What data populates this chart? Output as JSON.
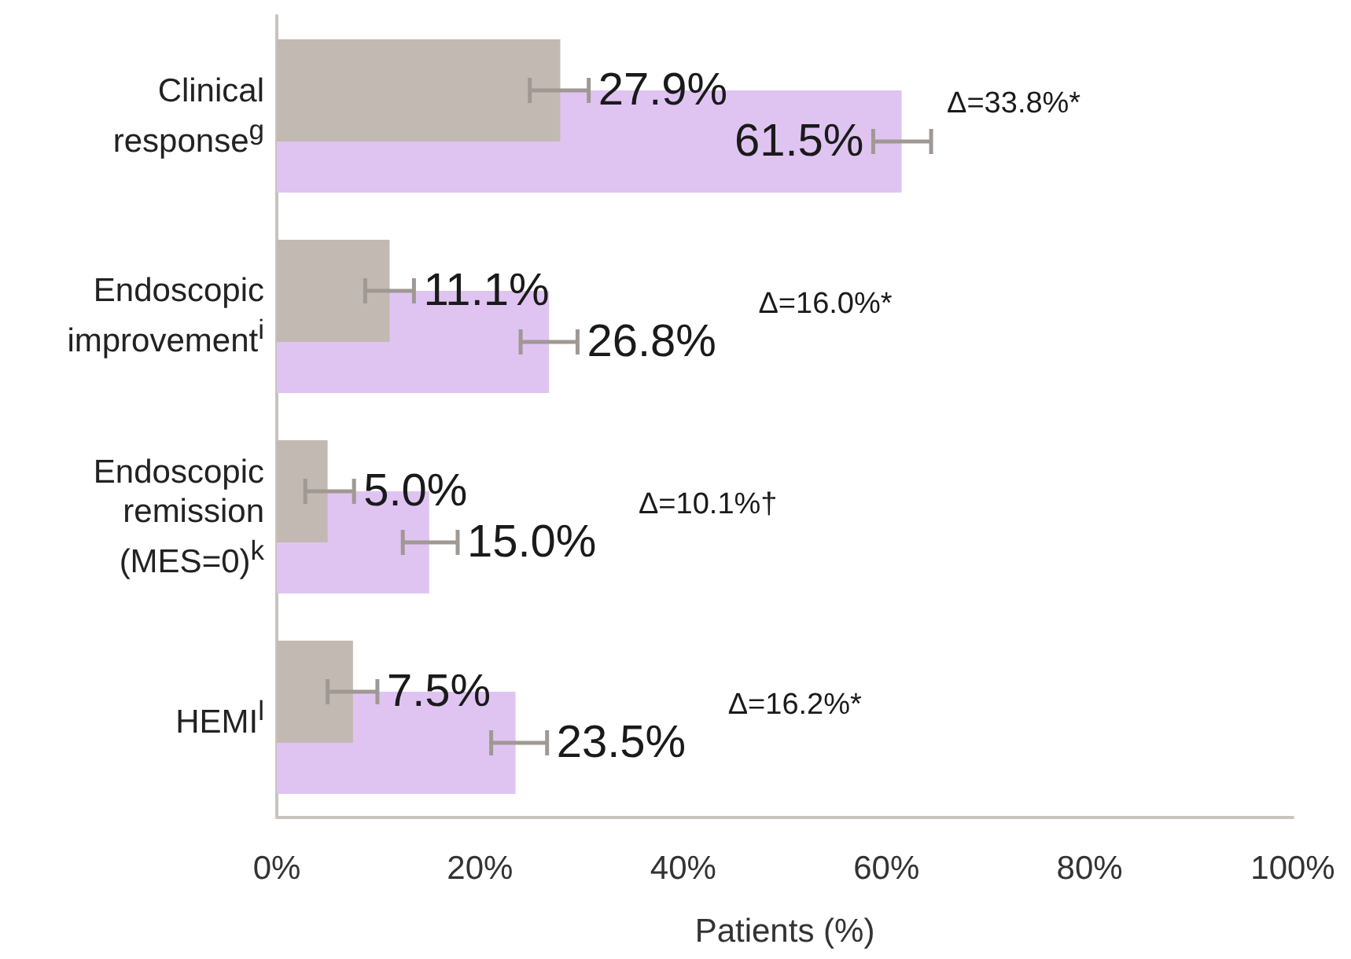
{
  "chart_data": {
    "type": "bar",
    "orientation": "horizontal",
    "xlabel": "Patients (%)",
    "categories": [
      "Clinical\nresponse$^{g}$",
      "Endoscopic\nimprovement$^{i}$",
      "Endoscopic\nremission\n(MES=0)$^{k}$",
      "HEMI$^{l}$"
    ],
    "series": [
      {
        "color": "#c2b9b3",
        "values": [
          27.9,
          11.1,
          5.0,
          7.5
        ],
        "errors": [
          [
            24.9,
            30.7
          ],
          [
            8.7,
            13.5
          ],
          [
            2.8,
            7.6
          ],
          [
            5.0,
            9.9
          ]
        ],
        "value_labels": [
          "27.9%",
          "11.1%",
          "5.0%",
          "7.5%"
        ]
      },
      {
        "color": "#dfc4f2",
        "values": [
          61.5,
          26.8,
          15.0,
          23.5
        ],
        "errors": [
          [
            58.7,
            64.4
          ],
          [
            24.0,
            29.6
          ],
          [
            12.4,
            17.8
          ],
          [
            21.1,
            26.6
          ]
        ],
        "value_labels": [
          "61.5%",
          "26.8%",
          "15.0%",
          "23.5%"
        ]
      }
    ],
    "xlim": [
      0,
      100
    ],
    "xticks": [
      {
        "value": 0,
        "label": "0%"
      },
      {
        "value": 20,
        "label": "20%"
      },
      {
        "value": 40,
        "label": "40%"
      },
      {
        "value": 60,
        "label": "60%"
      },
      {
        "value": 80,
        "label": "80%"
      },
      {
        "value": 100,
        "label": "100%"
      }
    ],
    "grid": false,
    "annotations": [
      "Δ=33.8%*",
      "Δ=16.0%*",
      "Δ=10.1%†",
      "Δ=16.2%*"
    ]
  }
}
